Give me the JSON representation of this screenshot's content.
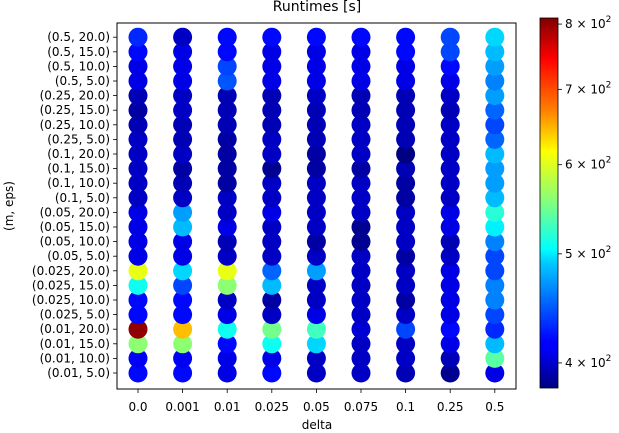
{
  "chart_data": {
    "type": "scatter",
    "title": "Runtimes [s]",
    "xlabel": "delta",
    "ylabel": "(m, eps)",
    "x_categories": [
      "0.0",
      "0.001",
      "0.01",
      "0.025",
      "0.05",
      "0.075",
      "0.1",
      "0.25",
      "0.5"
    ],
    "y_categories": [
      "(0.01, 5.0)",
      "(0.01, 10.0)",
      "(0.01, 15.0)",
      "(0.01, 20.0)",
      "(0.025, 5.0)",
      "(0.025, 10.0)",
      "(0.025, 15.0)",
      "(0.025, 20.0)",
      "(0.05, 5.0)",
      "(0.05, 10.0)",
      "(0.05, 15.0)",
      "(0.05, 20.0)",
      "(0.1, 5.0)",
      "(0.1, 10.0)",
      "(0.1, 15.0)",
      "(0.1, 20.0)",
      "(0.25, 5.0)",
      "(0.25, 10.0)",
      "(0.25, 15.0)",
      "(0.25, 20.0)",
      "(0.5, 5.0)",
      "(0.5, 10.0)",
      "(0.5, 15.0)",
      "(0.5, 20.0)"
    ],
    "values": [
      [
        420,
        420,
        410,
        420,
        400,
        400,
        395,
        385,
        410
      ],
      [
        415,
        415,
        410,
        410,
        400,
        400,
        400,
        395,
        540
      ],
      [
        560,
        560,
        420,
        510,
        490,
        400,
        400,
        410,
        480
      ],
      [
        800,
        640,
        510,
        550,
        530,
        405,
        440,
        420,
        430
      ],
      [
        420,
        420,
        410,
        400,
        410,
        400,
        400,
        410,
        440
      ],
      [
        420,
        420,
        400,
        390,
        400,
        400,
        390,
        410,
        460
      ],
      [
        510,
        440,
        560,
        480,
        400,
        400,
        400,
        410,
        460
      ],
      [
        600,
        490,
        600,
        450,
        470,
        400,
        400,
        410,
        440
      ],
      [
        410,
        410,
        400,
        400,
        400,
        400,
        390,
        400,
        440
      ],
      [
        410,
        410,
        395,
        400,
        390,
        385,
        400,
        395,
        460
      ],
      [
        410,
        480,
        410,
        400,
        400,
        385,
        400,
        410,
        500
      ],
      [
        410,
        470,
        400,
        410,
        400,
        400,
        400,
        410,
        520
      ],
      [
        400,
        400,
        400,
        400,
        400,
        400,
        390,
        400,
        480
      ],
      [
        400,
        395,
        390,
        400,
        400,
        400,
        390,
        400,
        470
      ],
      [
        400,
        390,
        390,
        385,
        390,
        390,
        395,
        400,
        470
      ],
      [
        400,
        400,
        390,
        400,
        390,
        400,
        380,
        400,
        480
      ],
      [
        400,
        395,
        390,
        400,
        395,
        400,
        395,
        400,
        450
      ],
      [
        395,
        395,
        395,
        395,
        395,
        400,
        395,
        400,
        440
      ],
      [
        390,
        400,
        395,
        395,
        395,
        395,
        395,
        395,
        450
      ],
      [
        395,
        400,
        395,
        395,
        400,
        395,
        395,
        400,
        470
      ],
      [
        410,
        410,
        445,
        410,
        410,
        410,
        410,
        410,
        460
      ],
      [
        410,
        410,
        440,
        410,
        410,
        410,
        410,
        420,
        470
      ],
      [
        420,
        410,
        420,
        410,
        410,
        410,
        420,
        440,
        480
      ],
      [
        430,
        400,
        420,
        420,
        420,
        420,
        420,
        440,
        490
      ]
    ],
    "colorbar": {
      "colormap": "jet",
      "scale": "log",
      "min": 380,
      "max": 810,
      "ticks": [
        {
          "value": 400,
          "label_base": "4 × 10",
          "label_exp": "2"
        },
        {
          "value": 500,
          "label_base": "5 × 10",
          "label_exp": "2"
        },
        {
          "value": 600,
          "label_base": "6 × 10",
          "label_exp": "2"
        },
        {
          "value": 700,
          "label_base": "7 × 10",
          "label_exp": "2"
        },
        {
          "value": 800,
          "label_base": "8 × 10",
          "label_exp": "2"
        }
      ]
    }
  }
}
